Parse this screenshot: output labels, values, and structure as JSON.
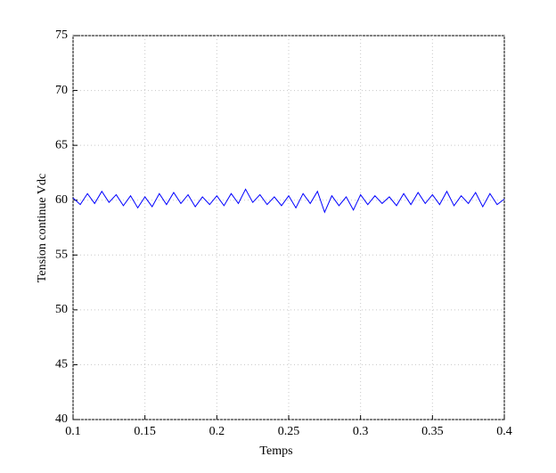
{
  "chart_data": {
    "type": "line",
    "xlabel": "Temps",
    "ylabel": "Tension continue Vdc",
    "x": [
      0.1,
      0.105,
      0.11,
      0.115,
      0.12,
      0.125,
      0.13,
      0.135,
      0.14,
      0.145,
      0.15,
      0.155,
      0.16,
      0.165,
      0.17,
      0.175,
      0.18,
      0.185,
      0.19,
      0.195,
      0.2,
      0.205,
      0.21,
      0.215,
      0.22,
      0.225,
      0.23,
      0.235,
      0.24,
      0.245,
      0.25,
      0.255,
      0.26,
      0.265,
      0.27,
      0.275,
      0.28,
      0.285,
      0.29,
      0.295,
      0.3,
      0.305,
      0.31,
      0.315,
      0.32,
      0.325,
      0.33,
      0.335,
      0.34,
      0.345,
      0.35,
      0.355,
      0.36,
      0.365,
      0.37,
      0.375,
      0.38,
      0.385,
      0.39,
      0.395,
      0.4
    ],
    "series": [
      {
        "color": "#0000ff",
        "values": [
          60.2,
          59.6,
          60.6,
          59.7,
          60.8,
          59.8,
          60.5,
          59.5,
          60.4,
          59.3,
          60.3,
          59.4,
          60.6,
          59.6,
          60.7,
          59.7,
          60.5,
          59.4,
          60.3,
          59.6,
          60.4,
          59.5,
          60.6,
          59.7,
          61.0,
          59.8,
          60.5,
          59.6,
          60.3,
          59.5,
          60.4,
          59.3,
          60.6,
          59.7,
          60.8,
          58.9,
          60.4,
          59.5,
          60.3,
          59.1,
          60.5,
          59.6,
          60.4,
          59.7,
          60.3,
          59.5,
          60.6,
          59.6,
          60.7,
          59.7,
          60.5,
          59.6,
          60.8,
          59.5,
          60.4,
          59.7,
          60.7,
          59.4,
          60.6,
          59.6,
          60.1
        ]
      }
    ],
    "xlim": [
      0.1,
      0.4
    ],
    "xticks": [
      0.1,
      0.15,
      0.2,
      0.25,
      0.3,
      0.35,
      0.4
    ],
    "ylim": [
      40,
      75
    ],
    "yticks": [
      40,
      45,
      50,
      55,
      60,
      65,
      70,
      75
    ],
    "grid": true
  }
}
